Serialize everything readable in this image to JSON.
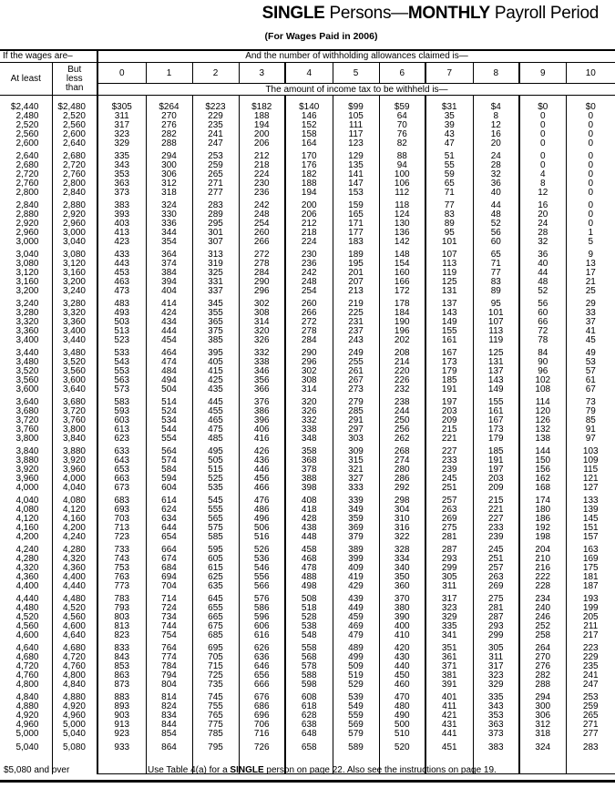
{
  "title": {
    "bold1": "SINGLE",
    "text1": " Persons—",
    "bold2": "MONTHLY",
    "text2": " Payroll Period"
  },
  "subtitle": "(For Wages Paid in 2006)",
  "header": {
    "wages_label": "If the wages are–",
    "allowances_label": "And the number of withholding allowances claimed is—",
    "at_least": "At least",
    "but_less_than": "But less than",
    "allowance_columns": [
      "0",
      "1",
      "2",
      "3",
      "4",
      "5",
      "6",
      "7",
      "8",
      "9",
      "10"
    ],
    "amount_label": "The amount of income tax to be withheld is—"
  },
  "rows": [
    [
      "$2,440",
      "$2,480",
      "$305",
      "$264",
      "$223",
      "$182",
      "$140",
      "$99",
      "$59",
      "$31",
      "$4",
      "$0",
      "$0"
    ],
    [
      "2,480",
      "2,520",
      "311",
      "270",
      "229",
      "188",
      "146",
      "105",
      "64",
      "35",
      "8",
      "0",
      "0"
    ],
    [
      "2,520",
      "2,560",
      "317",
      "276",
      "235",
      "194",
      "152",
      "111",
      "70",
      "39",
      "12",
      "0",
      "0"
    ],
    [
      "2,560",
      "2,600",
      "323",
      "282",
      "241",
      "200",
      "158",
      "117",
      "76",
      "43",
      "16",
      "0",
      "0"
    ],
    [
      "2,600",
      "2,640",
      "329",
      "288",
      "247",
      "206",
      "164",
      "123",
      "82",
      "47",
      "20",
      "0",
      "0"
    ],
    [
      "2,640",
      "2,680",
      "335",
      "294",
      "253",
      "212",
      "170",
      "129",
      "88",
      "51",
      "24",
      "0",
      "0"
    ],
    [
      "2,680",
      "2,720",
      "343",
      "300",
      "259",
      "218",
      "176",
      "135",
      "94",
      "55",
      "28",
      "0",
      "0"
    ],
    [
      "2,720",
      "2,760",
      "353",
      "306",
      "265",
      "224",
      "182",
      "141",
      "100",
      "59",
      "32",
      "4",
      "0"
    ],
    [
      "2,760",
      "2,800",
      "363",
      "312",
      "271",
      "230",
      "188",
      "147",
      "106",
      "65",
      "36",
      "8",
      "0"
    ],
    [
      "2,800",
      "2,840",
      "373",
      "318",
      "277",
      "236",
      "194",
      "153",
      "112",
      "71",
      "40",
      "12",
      "0"
    ],
    [
      "2,840",
      "2,880",
      "383",
      "324",
      "283",
      "242",
      "200",
      "159",
      "118",
      "77",
      "44",
      "16",
      "0"
    ],
    [
      "2,880",
      "2,920",
      "393",
      "330",
      "289",
      "248",
      "206",
      "165",
      "124",
      "83",
      "48",
      "20",
      "0"
    ],
    [
      "2,920",
      "2,960",
      "403",
      "336",
      "295",
      "254",
      "212",
      "171",
      "130",
      "89",
      "52",
      "24",
      "0"
    ],
    [
      "2,960",
      "3,000",
      "413",
      "344",
      "301",
      "260",
      "218",
      "177",
      "136",
      "95",
      "56",
      "28",
      "1"
    ],
    [
      "3,000",
      "3,040",
      "423",
      "354",
      "307",
      "266",
      "224",
      "183",
      "142",
      "101",
      "60",
      "32",
      "5"
    ],
    [
      "3,040",
      "3,080",
      "433",
      "364",
      "313",
      "272",
      "230",
      "189",
      "148",
      "107",
      "65",
      "36",
      "9"
    ],
    [
      "3,080",
      "3,120",
      "443",
      "374",
      "319",
      "278",
      "236",
      "195",
      "154",
      "113",
      "71",
      "40",
      "13"
    ],
    [
      "3,120",
      "3,160",
      "453",
      "384",
      "325",
      "284",
      "242",
      "201",
      "160",
      "119",
      "77",
      "44",
      "17"
    ],
    [
      "3,160",
      "3,200",
      "463",
      "394",
      "331",
      "290",
      "248",
      "207",
      "166",
      "125",
      "83",
      "48",
      "21"
    ],
    [
      "3,200",
      "3,240",
      "473",
      "404",
      "337",
      "296",
      "254",
      "213",
      "172",
      "131",
      "89",
      "52",
      "25"
    ],
    [
      "3,240",
      "3,280",
      "483",
      "414",
      "345",
      "302",
      "260",
      "219",
      "178",
      "137",
      "95",
      "56",
      "29"
    ],
    [
      "3,280",
      "3,320",
      "493",
      "424",
      "355",
      "308",
      "266",
      "225",
      "184",
      "143",
      "101",
      "60",
      "33"
    ],
    [
      "3,320",
      "3,360",
      "503",
      "434",
      "365",
      "314",
      "272",
      "231",
      "190",
      "149",
      "107",
      "66",
      "37"
    ],
    [
      "3,360",
      "3,400",
      "513",
      "444",
      "375",
      "320",
      "278",
      "237",
      "196",
      "155",
      "113",
      "72",
      "41"
    ],
    [
      "3,400",
      "3,440",
      "523",
      "454",
      "385",
      "326",
      "284",
      "243",
      "202",
      "161",
      "119",
      "78",
      "45"
    ],
    [
      "3,440",
      "3,480",
      "533",
      "464",
      "395",
      "332",
      "290",
      "249",
      "208",
      "167",
      "125",
      "84",
      "49"
    ],
    [
      "3,480",
      "3,520",
      "543",
      "474",
      "405",
      "338",
      "296",
      "255",
      "214",
      "173",
      "131",
      "90",
      "53"
    ],
    [
      "3,520",
      "3,560",
      "553",
      "484",
      "415",
      "346",
      "302",
      "261",
      "220",
      "179",
      "137",
      "96",
      "57"
    ],
    [
      "3,560",
      "3,600",
      "563",
      "494",
      "425",
      "356",
      "308",
      "267",
      "226",
      "185",
      "143",
      "102",
      "61"
    ],
    [
      "3,600",
      "3,640",
      "573",
      "504",
      "435",
      "366",
      "314",
      "273",
      "232",
      "191",
      "149",
      "108",
      "67"
    ],
    [
      "3,640",
      "3,680",
      "583",
      "514",
      "445",
      "376",
      "320",
      "279",
      "238",
      "197",
      "155",
      "114",
      "73"
    ],
    [
      "3,680",
      "3,720",
      "593",
      "524",
      "455",
      "386",
      "326",
      "285",
      "244",
      "203",
      "161",
      "120",
      "79"
    ],
    [
      "3,720",
      "3,760",
      "603",
      "534",
      "465",
      "396",
      "332",
      "291",
      "250",
      "209",
      "167",
      "126",
      "85"
    ],
    [
      "3,760",
      "3,800",
      "613",
      "544",
      "475",
      "406",
      "338",
      "297",
      "256",
      "215",
      "173",
      "132",
      "91"
    ],
    [
      "3,800",
      "3,840",
      "623",
      "554",
      "485",
      "416",
      "348",
      "303",
      "262",
      "221",
      "179",
      "138",
      "97"
    ],
    [
      "3,840",
      "3,880",
      "633",
      "564",
      "495",
      "426",
      "358",
      "309",
      "268",
      "227",
      "185",
      "144",
      "103"
    ],
    [
      "3,880",
      "3,920",
      "643",
      "574",
      "505",
      "436",
      "368",
      "315",
      "274",
      "233",
      "191",
      "150",
      "109"
    ],
    [
      "3,920",
      "3,960",
      "653",
      "584",
      "515",
      "446",
      "378",
      "321",
      "280",
      "239",
      "197",
      "156",
      "115"
    ],
    [
      "3,960",
      "4,000",
      "663",
      "594",
      "525",
      "456",
      "388",
      "327",
      "286",
      "245",
      "203",
      "162",
      "121"
    ],
    [
      "4,000",
      "4,040",
      "673",
      "604",
      "535",
      "466",
      "398",
      "333",
      "292",
      "251",
      "209",
      "168",
      "127"
    ],
    [
      "4,040",
      "4,080",
      "683",
      "614",
      "545",
      "476",
      "408",
      "339",
      "298",
      "257",
      "215",
      "174",
      "133"
    ],
    [
      "4,080",
      "4,120",
      "693",
      "624",
      "555",
      "486",
      "418",
      "349",
      "304",
      "263",
      "221",
      "180",
      "139"
    ],
    [
      "4,120",
      "4,160",
      "703",
      "634",
      "565",
      "496",
      "428",
      "359",
      "310",
      "269",
      "227",
      "186",
      "145"
    ],
    [
      "4,160",
      "4,200",
      "713",
      "644",
      "575",
      "506",
      "438",
      "369",
      "316",
      "275",
      "233",
      "192",
      "151"
    ],
    [
      "4,200",
      "4,240",
      "723",
      "654",
      "585",
      "516",
      "448",
      "379",
      "322",
      "281",
      "239",
      "198",
      "157"
    ],
    [
      "4,240",
      "4,280",
      "733",
      "664",
      "595",
      "526",
      "458",
      "389",
      "328",
      "287",
      "245",
      "204",
      "163"
    ],
    [
      "4,280",
      "4,320",
      "743",
      "674",
      "605",
      "536",
      "468",
      "399",
      "334",
      "293",
      "251",
      "210",
      "169"
    ],
    [
      "4,320",
      "4,360",
      "753",
      "684",
      "615",
      "546",
      "478",
      "409",
      "340",
      "299",
      "257",
      "216",
      "175"
    ],
    [
      "4,360",
      "4,400",
      "763",
      "694",
      "625",
      "556",
      "488",
      "419",
      "350",
      "305",
      "263",
      "222",
      "181"
    ],
    [
      "4,400",
      "4,440",
      "773",
      "704",
      "635",
      "566",
      "498",
      "429",
      "360",
      "311",
      "269",
      "228",
      "187"
    ],
    [
      "4,440",
      "4,480",
      "783",
      "714",
      "645",
      "576",
      "508",
      "439",
      "370",
      "317",
      "275",
      "234",
      "193"
    ],
    [
      "4,480",
      "4,520",
      "793",
      "724",
      "655",
      "586",
      "518",
      "449",
      "380",
      "323",
      "281",
      "240",
      "199"
    ],
    [
      "4,520",
      "4,560",
      "803",
      "734",
      "665",
      "596",
      "528",
      "459",
      "390",
      "329",
      "287",
      "246",
      "205"
    ],
    [
      "4,560",
      "4,600",
      "813",
      "744",
      "675",
      "606",
      "538",
      "469",
      "400",
      "335",
      "293",
      "252",
      "211"
    ],
    [
      "4,600",
      "4,640",
      "823",
      "754",
      "685",
      "616",
      "548",
      "479",
      "410",
      "341",
      "299",
      "258",
      "217"
    ],
    [
      "4,640",
      "4,680",
      "833",
      "764",
      "695",
      "626",
      "558",
      "489",
      "420",
      "351",
      "305",
      "264",
      "223"
    ],
    [
      "4,680",
      "4,720",
      "843",
      "774",
      "705",
      "636",
      "568",
      "499",
      "430",
      "361",
      "311",
      "270",
      "229"
    ],
    [
      "4,720",
      "4,760",
      "853",
      "784",
      "715",
      "646",
      "578",
      "509",
      "440",
      "371",
      "317",
      "276",
      "235"
    ],
    [
      "4,760",
      "4,800",
      "863",
      "794",
      "725",
      "656",
      "588",
      "519",
      "450",
      "381",
      "323",
      "282",
      "241"
    ],
    [
      "4,800",
      "4,840",
      "873",
      "804",
      "735",
      "666",
      "598",
      "529",
      "460",
      "391",
      "329",
      "288",
      "247"
    ],
    [
      "4,840",
      "4,880",
      "883",
      "814",
      "745",
      "676",
      "608",
      "539",
      "470",
      "401",
      "335",
      "294",
      "253"
    ],
    [
      "4,880",
      "4,920",
      "893",
      "824",
      "755",
      "686",
      "618",
      "549",
      "480",
      "411",
      "343",
      "300",
      "259"
    ],
    [
      "4,920",
      "4,960",
      "903",
      "834",
      "765",
      "696",
      "628",
      "559",
      "490",
      "421",
      "353",
      "306",
      "265"
    ],
    [
      "4,960",
      "5,000",
      "913",
      "844",
      "775",
      "706",
      "638",
      "569",
      "500",
      "431",
      "363",
      "312",
      "271"
    ],
    [
      "5,000",
      "5,040",
      "923",
      "854",
      "785",
      "716",
      "648",
      "579",
      "510",
      "441",
      "373",
      "318",
      "277"
    ],
    [
      "5,040",
      "5,080",
      "933",
      "864",
      "795",
      "726",
      "658",
      "589",
      "520",
      "451",
      "383",
      "324",
      "283"
    ]
  ],
  "footer": {
    "over_label": "$5,080 and over",
    "instruction_pre": "Use Table 4(a) for a ",
    "instruction_bold": "SINGLE",
    "instruction_post": " person on page 22. Also see the instructions on page 19."
  }
}
